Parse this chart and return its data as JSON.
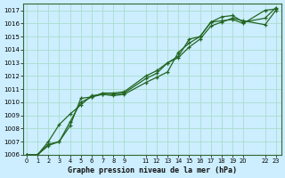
{
  "title": "Graphe pression niveau de la mer (hPa)",
  "bg_color": "#cceeff",
  "grid_color": "#aaddcc",
  "line_color": "#226622",
  "ylim": [
    1006,
    1017.5
  ],
  "yticks": [
    1006,
    1007,
    1008,
    1009,
    1010,
    1011,
    1012,
    1013,
    1014,
    1015,
    1016,
    1017
  ],
  "xticks": [
    0,
    1,
    2,
    3,
    4,
    5,
    6,
    7,
    8,
    9,
    11,
    12,
    13,
    14,
    15,
    16,
    17,
    18,
    19,
    20,
    22,
    23
  ],
  "xlim": [
    -0.3,
    23.5
  ],
  "x_indices": [
    0,
    1,
    2,
    3,
    4,
    5,
    6,
    7,
    8,
    9,
    11,
    12,
    13,
    14,
    15,
    16,
    17,
    18,
    19,
    20,
    22,
    23
  ],
  "series": [
    [
      1006.0,
      1006.0,
      1007.0,
      1008.3,
      1009.1,
      1009.8,
      1010.5,
      1010.6,
      1010.5,
      1010.6,
      1011.5,
      1011.9,
      1012.3,
      1013.8,
      1014.5,
      1015.0,
      1016.1,
      1016.5,
      1016.6,
      1016.1,
      1016.4,
      1017.2
    ],
    [
      1006.0,
      1006.0,
      1006.7,
      1007.0,
      1008.2,
      1010.3,
      1010.4,
      1010.7,
      1010.7,
      1010.8,
      1012.0,
      1012.4,
      1013.0,
      1013.5,
      1014.8,
      1015.0,
      1016.1,
      1016.2,
      1016.3,
      1016.0,
      1017.0,
      1017.1
    ],
    [
      1006.0,
      1006.0,
      1006.8,
      1007.0,
      1008.5,
      1010.0,
      1010.4,
      1010.6,
      1010.6,
      1010.7,
      1011.8,
      1012.2,
      1013.0,
      1013.4,
      1014.2,
      1014.8,
      1015.8,
      1016.1,
      1016.4,
      1016.2,
      1015.9,
      1017.0
    ]
  ]
}
